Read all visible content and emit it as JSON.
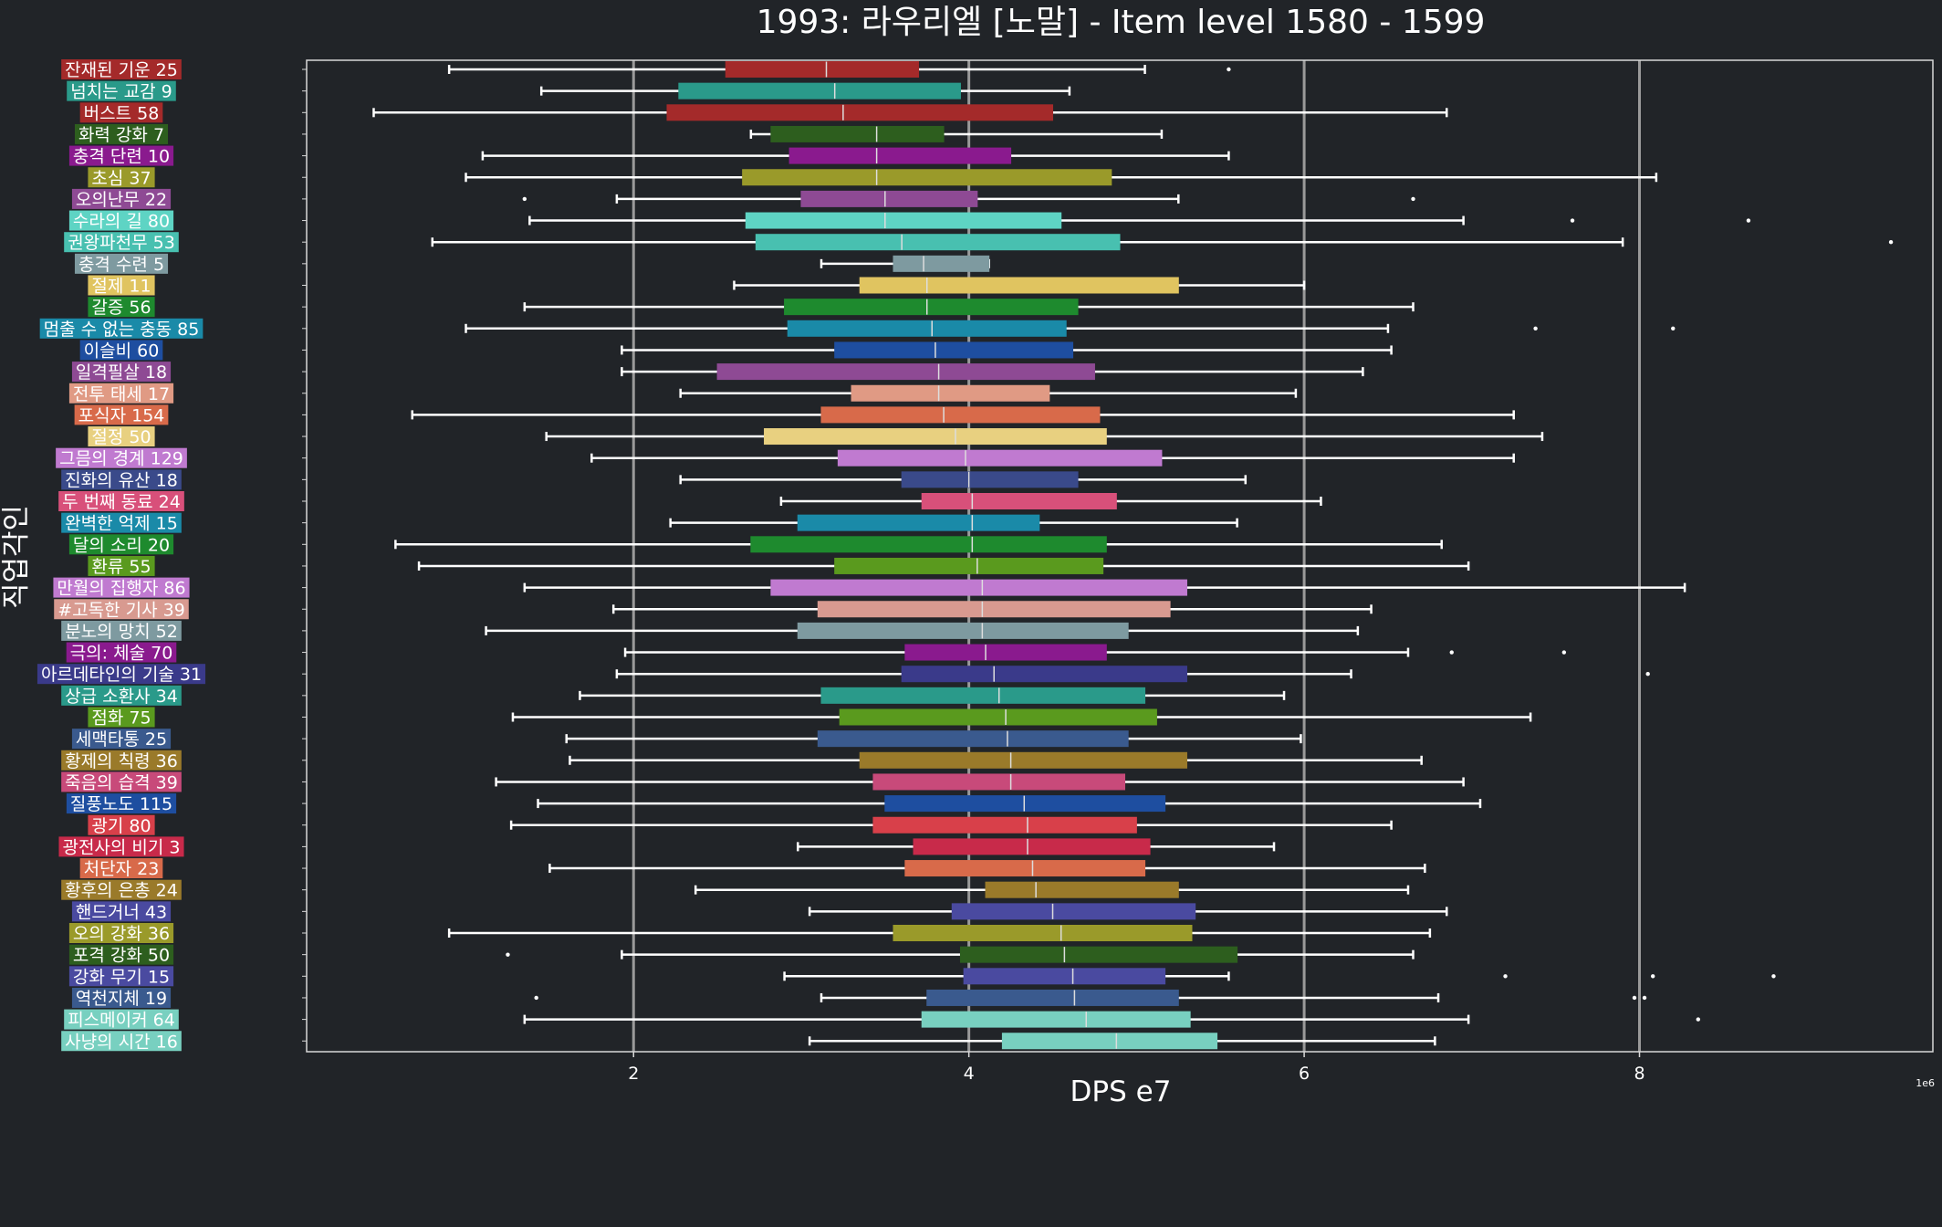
{
  "chart_data": {
    "type": "boxplot-horizontal",
    "title": "1993: 라우리엘 [노말] - Item level 1580 - 1599",
    "xlabel": "DPS e7",
    "ylabel": "직업각인",
    "x_offset_label": "1e6",
    "xlim": [
      0.05,
      9.75
    ],
    "xticks": [
      2,
      4,
      6,
      8
    ],
    "grid": "vertical",
    "colors": {
      "background": "#212428",
      "frame": "#d8d8d8",
      "grid": "#9a9a9a",
      "whisker": "#ffffff",
      "median": "#dddddd"
    },
    "categories": [
      {
        "label": "잔재된 기운 25",
        "color": "#a42a2a",
        "min": 0.9,
        "q1": 2.55,
        "median": 3.15,
        "q3": 3.7,
        "max": 5.05,
        "outliers": [
          5.55
        ]
      },
      {
        "label": "넘치는 교감 9",
        "color": "#2a9a8a",
        "min": 1.45,
        "q1": 2.27,
        "median": 3.2,
        "q3": 3.95,
        "max": 4.6,
        "outliers": []
      },
      {
        "label": "버스트 58",
        "color": "#a42a2a",
        "min": 0.45,
        "q1": 2.2,
        "median": 3.25,
        "q3": 4.5,
        "max": 6.85,
        "outliers": []
      },
      {
        "label": "화력 강화 7",
        "color": "#2d5e1e",
        "min": 2.7,
        "q1": 2.82,
        "median": 3.45,
        "q3": 3.85,
        "max": 5.15,
        "outliers": []
      },
      {
        "label": "충격 단련 10",
        "color": "#8a1a8e",
        "min": 1.1,
        "q1": 2.93,
        "median": 3.45,
        "q3": 4.25,
        "max": 5.55,
        "outliers": []
      },
      {
        "label": "초심 37",
        "color": "#9a9a2a",
        "min": 1.0,
        "q1": 2.65,
        "median": 3.45,
        "q3": 4.85,
        "max": 8.1,
        "outliers": []
      },
      {
        "label": "오의난무 22",
        "color": "#8e4a94",
        "min": 1.9,
        "q1": 3.0,
        "median": 3.5,
        "q3": 4.05,
        "max": 5.25,
        "outliers": [
          1.35,
          6.65
        ]
      },
      {
        "label": "수라의 길 80",
        "color": "#5ed4c4",
        "min": 1.38,
        "q1": 2.67,
        "median": 3.5,
        "q3": 4.55,
        "max": 6.95,
        "outliers": [
          7.6,
          8.65
        ]
      },
      {
        "label": "권왕파천무 53",
        "color": "#48c0b0",
        "min": 0.8,
        "q1": 2.73,
        "median": 3.6,
        "q3": 4.9,
        "max": 7.9,
        "outliers": [
          9.5
        ]
      },
      {
        "label": "충격 수련 5",
        "color": "#7e9aa0",
        "min": 3.12,
        "q1": 3.55,
        "median": 3.73,
        "q3": 4.12,
        "max": 4.12,
        "outliers": []
      },
      {
        "label": "절제 11",
        "color": "#e0c460",
        "min": 2.6,
        "q1": 3.35,
        "median": 3.75,
        "q3": 5.25,
        "max": 6.0,
        "outliers": []
      },
      {
        "label": "갈증 56",
        "color": "#1e8a2e",
        "min": 1.35,
        "q1": 2.9,
        "median": 3.75,
        "q3": 4.65,
        "max": 6.65,
        "outliers": []
      },
      {
        "label": "멈출 수 없는 충동 85",
        "color": "#1a8aa8",
        "min": 1.0,
        "q1": 2.92,
        "median": 3.78,
        "q3": 4.58,
        "max": 6.5,
        "outliers": [
          7.38,
          8.2
        ]
      },
      {
        "label": "이슬비 60",
        "color": "#1e4ea0",
        "min": 1.93,
        "q1": 3.2,
        "median": 3.8,
        "q3": 4.62,
        "max": 6.52,
        "outliers": []
      },
      {
        "label": "일격필살 18",
        "color": "#8e4a94",
        "min": 1.93,
        "q1": 2.5,
        "median": 3.82,
        "q3": 4.75,
        "max": 6.35,
        "outliers": []
      },
      {
        "label": "전투 태세 17",
        "color": "#e09a84",
        "min": 2.28,
        "q1": 3.3,
        "median": 3.82,
        "q3": 4.48,
        "max": 5.95,
        "outliers": []
      },
      {
        "label": "포식자 154",
        "color": "#d86a4a",
        "min": 0.68,
        "q1": 3.12,
        "median": 3.85,
        "q3": 4.78,
        "max": 7.25,
        "outliers": []
      },
      {
        "label": "절정 50",
        "color": "#e8d080",
        "min": 1.48,
        "q1": 2.78,
        "median": 3.92,
        "q3": 4.82,
        "max": 7.42,
        "outliers": []
      },
      {
        "label": "그믐의 경계 129",
        "color": "#c07ad0",
        "min": 1.75,
        "q1": 3.22,
        "median": 3.98,
        "q3": 5.15,
        "max": 7.25,
        "outliers": []
      },
      {
        "label": "진화의 유산 18",
        "color": "#3a4a8a",
        "min": 2.28,
        "q1": 3.6,
        "median": 4.0,
        "q3": 4.65,
        "max": 5.65,
        "outliers": []
      },
      {
        "label": "두 번째 동료 24",
        "color": "#d8507a",
        "min": 2.88,
        "q1": 3.72,
        "median": 4.02,
        "q3": 4.88,
        "max": 6.1,
        "outliers": []
      },
      {
        "label": "완벽한 억제 15",
        "color": "#1a8aa8",
        "min": 2.22,
        "q1": 2.98,
        "median": 4.02,
        "q3": 4.42,
        "max": 5.6,
        "outliers": []
      },
      {
        "label": "달의 소리 20",
        "color": "#1e8a2e",
        "min": 0.58,
        "q1": 2.7,
        "median": 4.02,
        "q3": 4.82,
        "max": 6.82,
        "outliers": []
      },
      {
        "label": "환류 55",
        "color": "#5a9a1e",
        "min": 0.72,
        "q1": 3.2,
        "median": 4.05,
        "q3": 4.8,
        "max": 6.98,
        "outliers": []
      },
      {
        "label": "만월의 집행자 86",
        "color": "#c07ad0",
        "min": 1.35,
        "q1": 2.82,
        "median": 4.08,
        "q3": 5.3,
        "max": 8.27,
        "outliers": []
      },
      {
        "label": "#고독한 기사 39",
        "color": "#d89a90",
        "min": 1.88,
        "q1": 3.1,
        "median": 4.08,
        "q3": 5.2,
        "max": 6.4,
        "outliers": []
      },
      {
        "label": "분노의 망치 52",
        "color": "#7e9aa0",
        "min": 1.12,
        "q1": 2.98,
        "median": 4.08,
        "q3": 4.95,
        "max": 6.32,
        "outliers": []
      },
      {
        "label": "극의: 체술 70",
        "color": "#8a1a8e",
        "min": 1.95,
        "q1": 3.62,
        "median": 4.1,
        "q3": 4.82,
        "max": 6.62,
        "outliers": [
          6.88,
          7.55
        ]
      },
      {
        "label": "아르데타인의 기술 31",
        "color": "#3a3a8a",
        "min": 1.9,
        "q1": 3.6,
        "median": 4.15,
        "q3": 5.3,
        "max": 6.28,
        "outliers": [
          8.05
        ]
      },
      {
        "label": "상급 소환사 34",
        "color": "#2a9a8a",
        "min": 1.68,
        "q1": 3.12,
        "median": 4.18,
        "q3": 5.05,
        "max": 5.88,
        "outliers": []
      },
      {
        "label": "점화 75",
        "color": "#5a9a1e",
        "min": 1.28,
        "q1": 3.23,
        "median": 4.22,
        "q3": 5.12,
        "max": 7.35,
        "outliers": []
      },
      {
        "label": "세맥타통 25",
        "color": "#3a5a8e",
        "min": 1.6,
        "q1": 3.1,
        "median": 4.23,
        "q3": 4.95,
        "max": 5.98,
        "outliers": []
      },
      {
        "label": "황제의 칙령 36",
        "color": "#9a7a2a",
        "min": 1.62,
        "q1": 3.35,
        "median": 4.25,
        "q3": 5.3,
        "max": 6.7,
        "outliers": []
      },
      {
        "label": "죽음의 습격 39",
        "color": "#c84a7a",
        "min": 1.18,
        "q1": 3.43,
        "median": 4.25,
        "q3": 4.93,
        "max": 6.95,
        "outliers": []
      },
      {
        "label": "질풍노도 115",
        "color": "#1e4ea0",
        "min": 1.43,
        "q1": 3.5,
        "median": 4.33,
        "q3": 5.17,
        "max": 7.05,
        "outliers": []
      },
      {
        "label": "광기 80",
        "color": "#d8404a",
        "min": 1.27,
        "q1": 3.43,
        "median": 4.35,
        "q3": 5.0,
        "max": 6.52,
        "outliers": []
      },
      {
        "label": "광전사의 비기 3",
        "color": "#c82a4a",
        "min": 2.98,
        "q1": 3.67,
        "median": 4.35,
        "q3": 5.08,
        "max": 5.82,
        "outliers": []
      },
      {
        "label": "처단자 23",
        "color": "#d86a4a",
        "min": 1.5,
        "q1": 3.62,
        "median": 4.38,
        "q3": 5.05,
        "max": 6.72,
        "outliers": []
      },
      {
        "label": "황후의 은총 24",
        "color": "#9a7a2a",
        "min": 2.37,
        "q1": 4.1,
        "median": 4.4,
        "q3": 5.25,
        "max": 6.62,
        "outliers": []
      },
      {
        "label": "핸드거너 43",
        "color": "#4a4aa0",
        "min": 3.05,
        "q1": 3.9,
        "median": 4.5,
        "q3": 5.35,
        "max": 6.85,
        "outliers": []
      },
      {
        "label": "오의 강화 36",
        "color": "#9a9a2a",
        "min": 0.9,
        "q1": 3.55,
        "median": 4.55,
        "q3": 5.33,
        "max": 6.75,
        "outliers": []
      },
      {
        "label": "포격 강화 50",
        "color": "#2d5e1e",
        "min": 1.93,
        "q1": 3.95,
        "median": 4.57,
        "q3": 5.6,
        "max": 6.65,
        "outliers": [
          1.25
        ]
      },
      {
        "label": "강화 무기 15",
        "color": "#4a4aa0",
        "min": 2.9,
        "q1": 3.97,
        "median": 4.62,
        "q3": 5.17,
        "max": 5.55,
        "outliers": [
          7.2,
          8.08,
          8.8
        ]
      },
      {
        "label": "역천지체 19",
        "color": "#3a5a8e",
        "min": 3.12,
        "q1": 3.75,
        "median": 4.63,
        "q3": 5.25,
        "max": 6.8,
        "outliers": [
          1.42,
          7.97,
          8.03
        ]
      },
      {
        "label": "피스메이커 64",
        "color": "#78d0c0",
        "min": 1.35,
        "q1": 3.72,
        "median": 4.7,
        "q3": 5.32,
        "max": 6.98,
        "outliers": [
          8.35
        ]
      },
      {
        "label": "사냥의 시간 16",
        "color": "#78d0c0",
        "min": 3.05,
        "q1": 4.2,
        "median": 4.88,
        "q3": 5.48,
        "max": 6.78,
        "outliers": []
      }
    ]
  }
}
